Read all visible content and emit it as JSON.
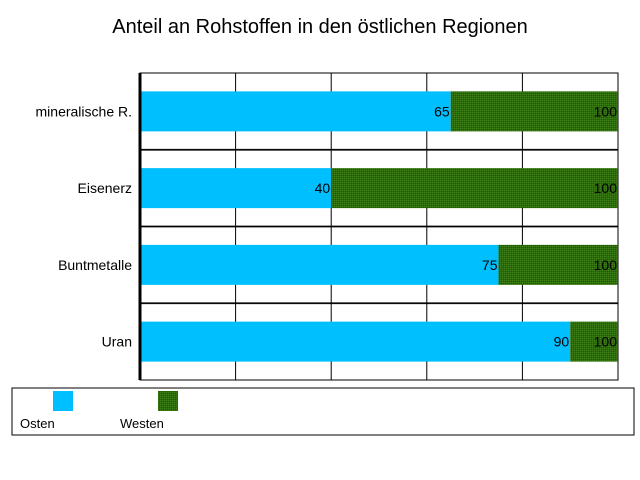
{
  "chart_data": {
    "type": "bar",
    "orientation": "horizontal",
    "stacked": true,
    "title": "Anteil an Rohstoffen in den östlichen Regionen",
    "categories": [
      "mineralische R.",
      "Eisenerz",
      "Buntmetalle",
      "Uran"
    ],
    "series": [
      {
        "name": "Osten",
        "values": [
          65,
          40,
          75,
          90
        ],
        "color": "#00bfff",
        "labels": [
          "65",
          "40",
          "75",
          "90"
        ]
      },
      {
        "name": "Westen",
        "values": [
          35,
          60,
          25,
          10
        ],
        "color": "#2e6b0e",
        "labels": [
          "100",
          "100",
          "100",
          "100"
        ]
      }
    ],
    "xlim": [
      0,
      100
    ],
    "grid": true,
    "legend_position": "bottom"
  }
}
